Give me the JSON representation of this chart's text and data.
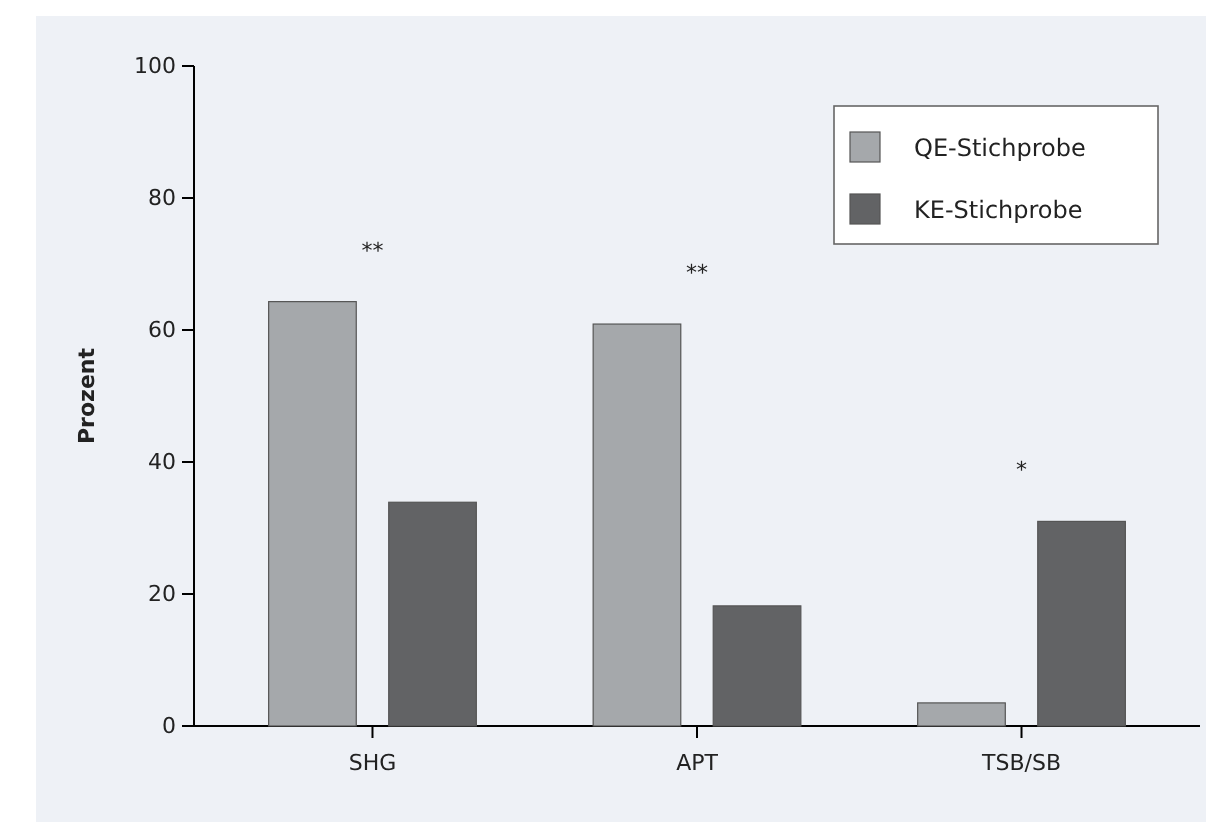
{
  "chart_data": {
    "type": "bar",
    "ylabel": "Prozent",
    "categories": [
      "SHG",
      "APT",
      "TSB/SB"
    ],
    "series": [
      {
        "name": "QE-Stichprobe",
        "color": "#a5a8ab",
        "values": [
          64.3,
          60.9,
          3.5
        ]
      },
      {
        "name": "KE-Stichprobe",
        "color": "#626365",
        "values": [
          33.9,
          18.2,
          31.0
        ]
      }
    ],
    "ylim": [
      0,
      100
    ],
    "yticks": [
      0,
      20,
      40,
      60,
      80,
      100
    ],
    "annotations": [
      "**",
      "**",
      "*"
    ],
    "grid": false,
    "legend": "top right"
  }
}
